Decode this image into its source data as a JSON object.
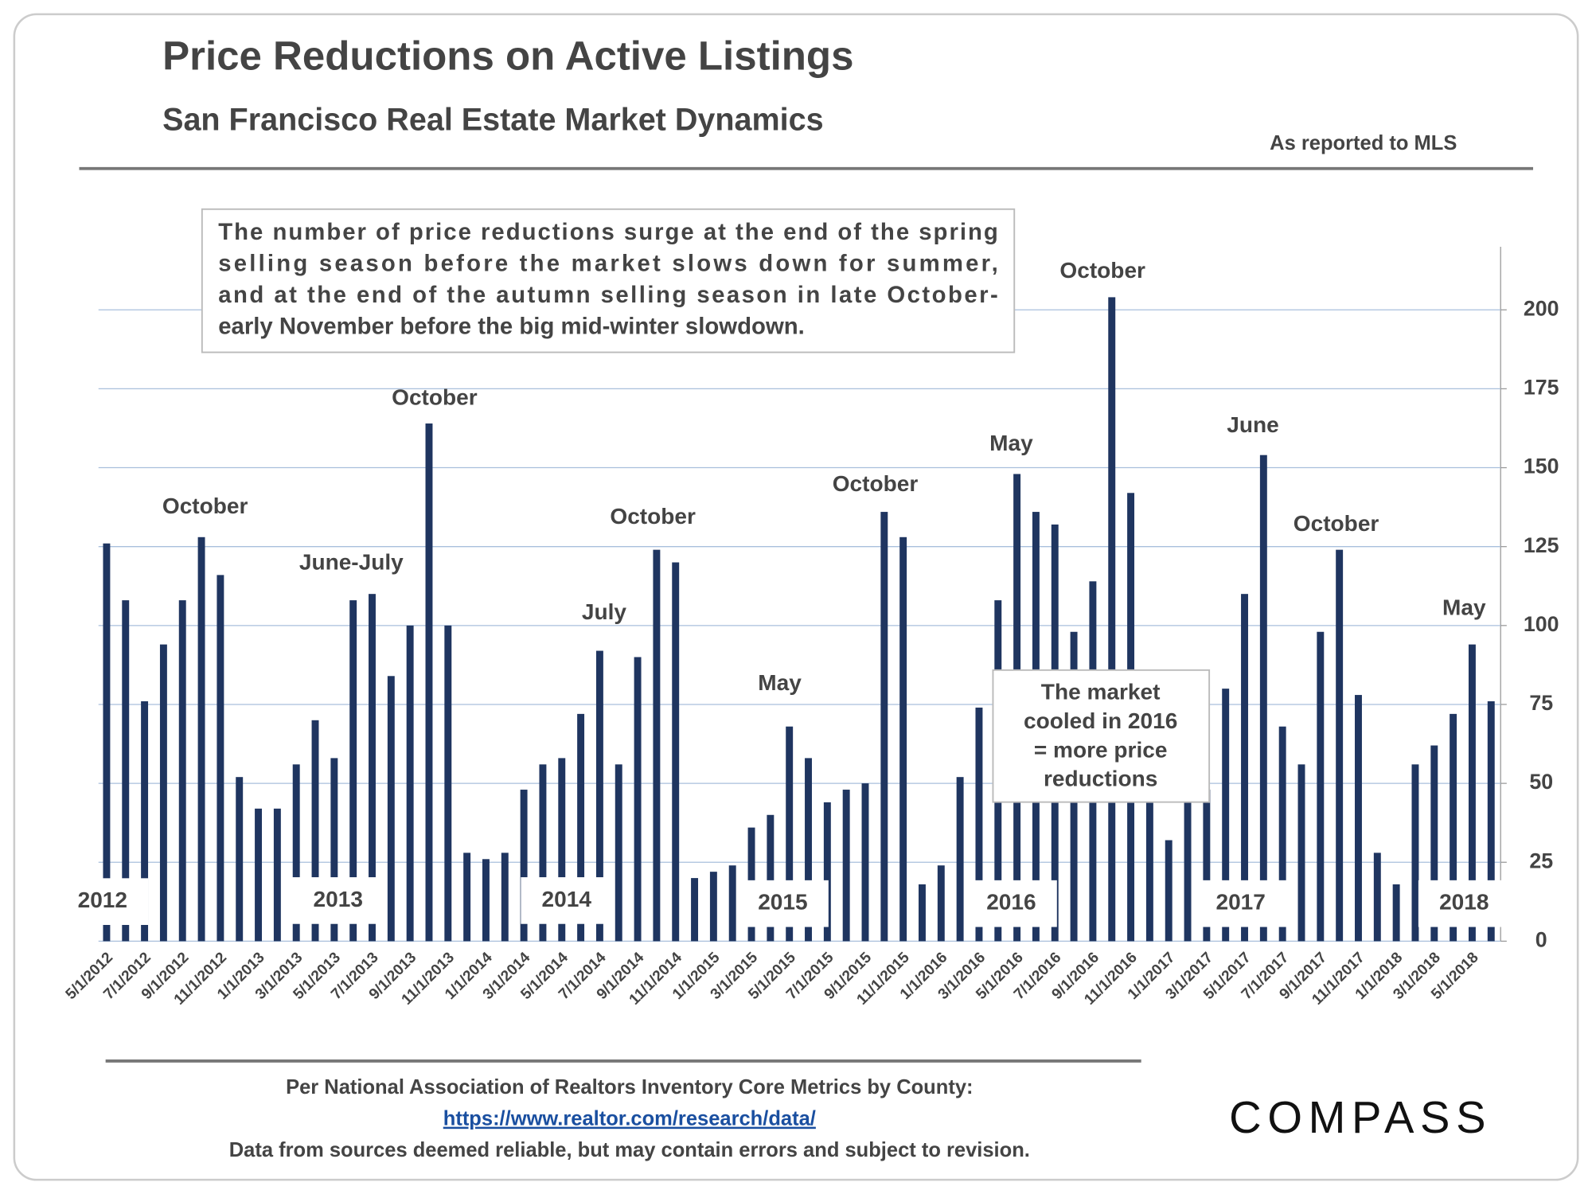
{
  "header": {
    "title": "Price Reductions on Active Listings",
    "subtitle": "San Francisco Real Estate Market Dynamics",
    "source_note": "As reported to MLS"
  },
  "note_lines": [
    "The number of price reductions surge at the end of the spring",
    "selling season before the market slows down for summer,",
    "and at the end of the autumn selling season in late October-",
    "early November before the big mid-winter slowdown."
  ],
  "callout_lines": [
    "The market",
    "cooled in 2016",
    "= more price",
    "reductions"
  ],
  "chart_data": {
    "type": "bar",
    "color": "#1f3560",
    "categories": [
      "5/1/2012",
      null,
      "7/1/2012",
      null,
      "9/1/2012",
      null,
      "11/1/2012",
      null,
      "1/1/2013",
      null,
      "3/1/2013",
      null,
      "5/1/2013",
      null,
      "7/1/2013",
      null,
      "9/1/2013",
      null,
      "11/1/2013",
      null,
      "1/1/2014",
      null,
      "3/1/2014",
      null,
      "5/1/2014",
      null,
      "7/1/2014",
      null,
      "9/1/2014",
      null,
      "11/1/2014",
      null,
      "1/1/2015",
      null,
      "3/1/2015",
      null,
      "5/1/2015",
      null,
      "7/1/2015",
      null,
      "9/1/2015",
      null,
      "11/1/2015",
      null,
      "1/1/2016",
      null,
      "3/1/2016",
      null,
      "5/1/2016",
      null,
      "7/1/2016",
      null,
      "9/1/2016",
      null,
      "11/1/2016",
      null,
      "1/1/2017",
      null,
      "3/1/2017",
      null,
      "5/1/2017",
      null,
      "7/1/2017",
      null,
      "9/1/2017",
      null,
      "11/1/2017",
      null,
      "1/1/2018",
      null,
      "3/1/2018",
      null,
      "5/1/2018",
      null
    ],
    "values": [
      126,
      108,
      76,
      94,
      108,
      128,
      116,
      52,
      42,
      42,
      56,
      70,
      58,
      108,
      110,
      84,
      100,
      164,
      100,
      28,
      26,
      28,
      48,
      56,
      58,
      72,
      92,
      56,
      90,
      124,
      120,
      20,
      22,
      24,
      36,
      40,
      68,
      58,
      44,
      48,
      50,
      136,
      128,
      18,
      24,
      52,
      74,
      108,
      148,
      136,
      132,
      98,
      114,
      204,
      142,
      46,
      32,
      46,
      48,
      80,
      110,
      154,
      68,
      56,
      98,
      124,
      78,
      28,
      18,
      56,
      62,
      72,
      94,
      76
    ],
    "ylim": [
      0,
      220
    ],
    "yticks": [
      0,
      25,
      50,
      75,
      100,
      125,
      150,
      175,
      200
    ],
    "grid": true,
    "annotations": [
      "October",
      "June-July",
      "October",
      "July",
      "October",
      "May",
      "October",
      "May",
      "October",
      "June",
      "October",
      "May"
    ],
    "year_labels": [
      "2012",
      "2013",
      "2014",
      "2015",
      "2016",
      "2017",
      "2018"
    ]
  },
  "footer": {
    "line1": "Per National Association of Realtors Inventory Core Metrics by County:",
    "link": "https://www.realtor.com/research/data/",
    "line2": "Data from sources deemed reliable, but may contain errors and subject to revision.",
    "logo": "COMPASS"
  }
}
